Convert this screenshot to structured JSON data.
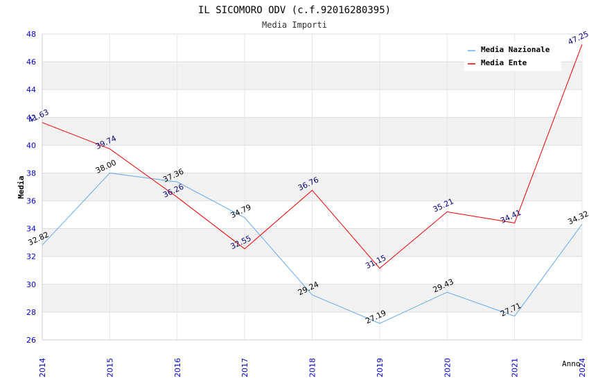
{
  "chart_data": {
    "type": "line",
    "title": "IL SICOMORO ODV (c.f.92016280395)",
    "subtitle": "Media Importi",
    "xlabel": "Anno",
    "ylabel": "Media",
    "ylim": [
      26,
      48
    ],
    "y_ticks": [
      "26",
      "28",
      "30",
      "32",
      "34",
      "36",
      "38",
      "40",
      "42",
      "44",
      "46",
      "48"
    ],
    "categories": [
      "2014",
      "2015",
      "2016",
      "2017",
      "2018",
      "2019",
      "2020",
      "2021",
      "2024"
    ],
    "grid": true,
    "legend_position": "top-right",
    "series": [
      {
        "name": "Media Nazionale",
        "color": "#66aaee",
        "label_color": "#000000",
        "values": [
          32.82,
          38.0,
          37.36,
          34.79,
          29.24,
          27.19,
          29.43,
          27.71,
          34.32
        ],
        "labels": [
          "32.82",
          "38.00",
          "37.36",
          "34.79",
          "29.24",
          "27.19",
          "29.43",
          "27.71",
          "34.32"
        ]
      },
      {
        "name": "Media Ente",
        "color": "#ee0000",
        "label_color": "#000080",
        "values": [
          41.63,
          39.74,
          36.26,
          32.55,
          36.76,
          31.15,
          35.21,
          34.41,
          47.25
        ],
        "labels": [
          "41.63",
          "39.74",
          "36.26",
          "32.55",
          "36.76",
          "31.15",
          "35.21",
          "34.41",
          "47.25"
        ]
      }
    ]
  }
}
